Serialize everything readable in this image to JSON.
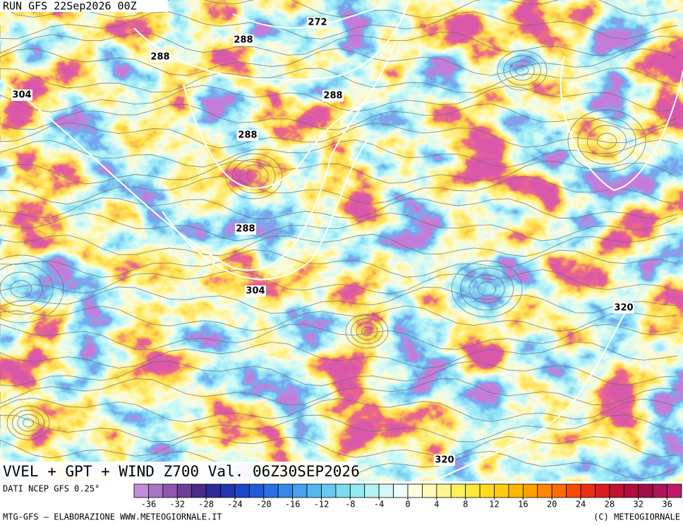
{
  "header": {
    "run": "RUN GFS 22Sep2026 00Z"
  },
  "map": {
    "title": "VVEL + GPT + WIND Z700 Val. 06Z30SEP2026",
    "contour_labels": [
      272,
      288,
      288,
      304,
      288,
      288,
      288,
      304,
      320,
      320
    ]
  },
  "colorbar": {
    "source": "DATI NCEP GFS 0.25°",
    "range": [
      -38,
      38
    ],
    "colors": [
      "#c48cd8",
      "#a874c4",
      "#8f56b0",
      "#6f3c98",
      "#4a2c88",
      "#2e2a96",
      "#2334b0",
      "#1e46c8",
      "#205ad8",
      "#2a70e4",
      "#3888ec",
      "#48a0f0",
      "#56b6f0",
      "#66caf0",
      "#7adcee",
      "#94e8ee",
      "#b4f2f2",
      "#d2f8f6",
      "#eefcfa",
      "#fffce0",
      "#fff8b8",
      "#fff490",
      "#fff060",
      "#ffe838",
      "#ffdc20",
      "#ffcc10",
      "#ffb800",
      "#ffa000",
      "#ff8800",
      "#ff6c00",
      "#f84c00",
      "#e83010",
      "#d81c20",
      "#c41030",
      "#b00c3c",
      "#a00c48",
      "#b01458",
      "#c01868"
    ],
    "ticks": [
      -36,
      -32,
      -28,
      -24,
      -20,
      -16,
      -12,
      -8,
      -4,
      0,
      4,
      8,
      12,
      16,
      20,
      24,
      28,
      32,
      36
    ]
  },
  "footer": {
    "left": "MTG-GFS — ELABORAZIONE WWW.METEOGIORNALE.IT",
    "right": "(C) METEOGIORNALE"
  }
}
